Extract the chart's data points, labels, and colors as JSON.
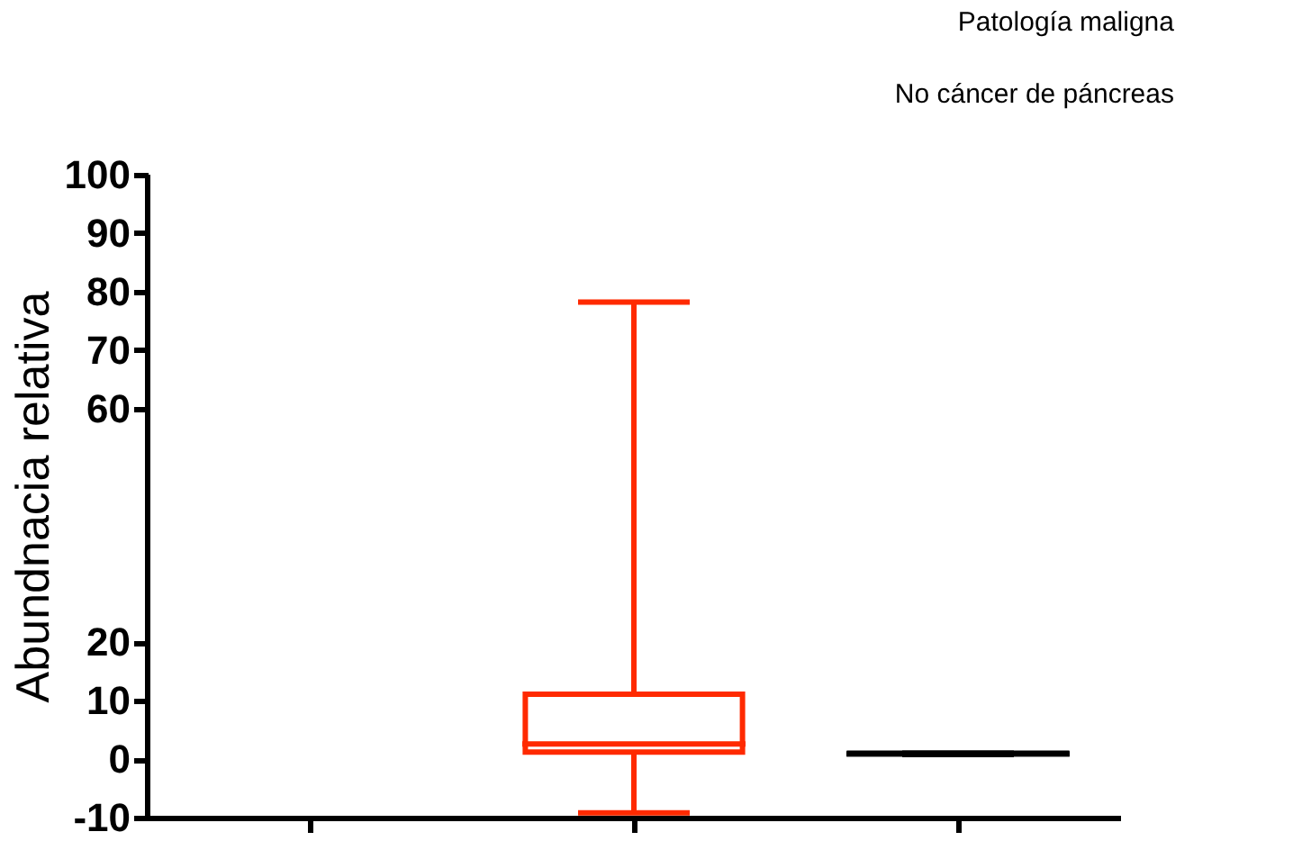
{
  "chart_data": {
    "type": "box",
    "ylabel": "Abundnacia relativa",
    "annotations": [
      "Patología maligna",
      "No cáncer de páncreas"
    ],
    "categories": [
      null,
      null,
      null
    ],
    "boxes": [
      null,
      {
        "low": -9.2,
        "q1": 1.2,
        "median": 2.6,
        "q3": 11.1,
        "high": 78.2
      },
      {
        "low": 0.8,
        "q1": 0.9,
        "median": 0.9,
        "q3": 1.0,
        "high": 1.0
      }
    ],
    "colors": [
      "#ff2a00",
      "#ff2a00",
      "#000000"
    ],
    "ylim": [
      -10,
      100
    ],
    "yticks": [
      -10,
      0,
      10,
      20,
      60,
      70,
      80,
      90,
      100
    ],
    "tick_labels": "y",
    "grid": false,
    "legend": false
  }
}
